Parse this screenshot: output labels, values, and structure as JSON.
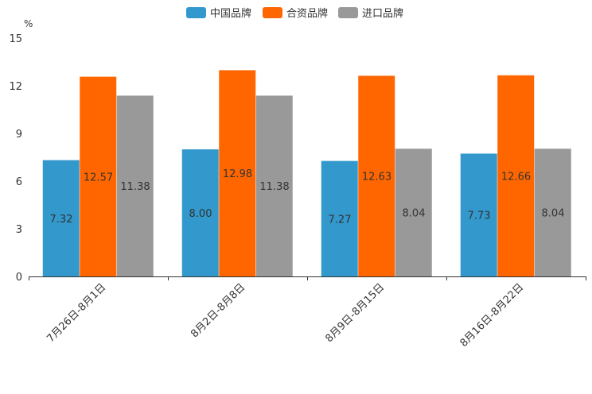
{
  "chart_data": {
    "type": "bar",
    "title": "",
    "ylabel": "%",
    "xlabel": "",
    "ylim": [
      0,
      15
    ],
    "yticks": [
      0,
      3,
      6,
      9,
      12,
      15
    ],
    "grid": false,
    "legend_position": "top-center",
    "categories": [
      "7月26日-8月1日",
      "8月2日-8月8日",
      "8月9日-8月15日",
      "8月16日-8月22日"
    ],
    "series": [
      {
        "name": "中国品牌",
        "color": "#3398cc",
        "values": [
          7.32,
          8.0,
          7.27,
          7.73
        ],
        "labels": [
          "7.32",
          "8.00",
          "7.27",
          "7.73"
        ]
      },
      {
        "name": "合资品牌",
        "color": "#ff6600",
        "values": [
          12.57,
          12.98,
          12.63,
          12.66
        ],
        "labels": [
          "12.57",
          "12.98",
          "12.63",
          "12.66"
        ]
      },
      {
        "name": "进口品牌",
        "color": "#999999",
        "values": [
          11.38,
          11.38,
          8.04,
          8.04
        ],
        "labels": [
          "11.38",
          "11.38",
          "8.04",
          "8.04"
        ]
      }
    ]
  }
}
